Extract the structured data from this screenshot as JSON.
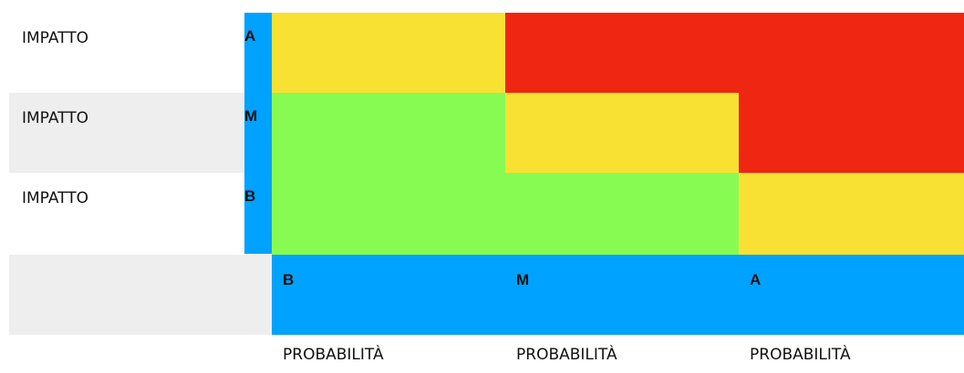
{
  "colors": {
    "axis_blue": "#00a2ff",
    "low": "#88fb52",
    "medium": "#f8e133",
    "high": "#ef2611",
    "row_shade": "#eeeeee"
  },
  "rows": [
    {
      "label": "IMPATTO",
      "level": "A"
    },
    {
      "label": "IMPATTO",
      "level": "M"
    },
    {
      "label": "IMPATTO",
      "level": "B"
    }
  ],
  "columns": [
    {
      "level": "B",
      "label": "PROBABILITÀ"
    },
    {
      "level": "M",
      "label": "PROBABILITÀ"
    },
    {
      "level": "A",
      "label": "PROBABILITÀ"
    }
  ],
  "matrix": [
    [
      "medium",
      "high",
      "high"
    ],
    [
      "low",
      "medium",
      "high"
    ],
    [
      "low",
      "low",
      "medium"
    ]
  ]
}
